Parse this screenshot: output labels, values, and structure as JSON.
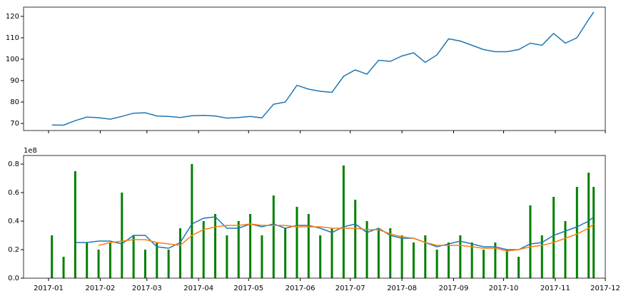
{
  "chart_data": [
    {
      "type": "line",
      "x": [
        "2017-01-03",
        "2017-01-10",
        "2017-01-17",
        "2017-01-24",
        "2017-01-31",
        "2017-02-07",
        "2017-02-14",
        "2017-02-21",
        "2017-02-28",
        "2017-03-07",
        "2017-03-14",
        "2017-03-21",
        "2017-03-28",
        "2017-04-04",
        "2017-04-11",
        "2017-04-18",
        "2017-04-25",
        "2017-05-02",
        "2017-05-09",
        "2017-05-16",
        "2017-05-23",
        "2017-05-30",
        "2017-06-06",
        "2017-06-13",
        "2017-06-20",
        "2017-06-27",
        "2017-07-04",
        "2017-07-11",
        "2017-07-18",
        "2017-07-25",
        "2017-08-01",
        "2017-08-08",
        "2017-08-15",
        "2017-08-22",
        "2017-08-29",
        "2017-09-05",
        "2017-09-12",
        "2017-09-19",
        "2017-09-26",
        "2017-10-03",
        "2017-10-10",
        "2017-10-17",
        "2017-10-24",
        "2017-10-31",
        "2017-11-07",
        "2017-11-14",
        "2017-11-21",
        "2017-11-24"
      ],
      "series": [
        {
          "color": "#1f77b4",
          "values": [
            69.3,
            69.2,
            71.3,
            73,
            72.7,
            72,
            73.3,
            74.8,
            75,
            73.5,
            73.3,
            72.8,
            73.6,
            73.8,
            73.5,
            72.5,
            72.8,
            73.3,
            72.6,
            79,
            80,
            87.8,
            86,
            85,
            84.5,
            92,
            95,
            93,
            99.5,
            99,
            101.5,
            103,
            98.5,
            102,
            109.5,
            108.5,
            106.5,
            104.5,
            103.5,
            103.5,
            104.5,
            107.5,
            106.5,
            112,
            107.5,
            110,
            118.5,
            122
          ]
        }
      ],
      "xlim": [
        "2016-12-17",
        "2017-12-01"
      ],
      "xticks": [
        "2017-01-01",
        "2017-02-01",
        "2017-03-01",
        "2017-04-01",
        "2017-05-01",
        "2017-06-01",
        "2017-07-01",
        "2017-08-01",
        "2017-09-01",
        "2017-10-01",
        "2017-11-01",
        "2017-12-01"
      ],
      "ylim": [
        66.7,
        124.3
      ],
      "yticks": [
        70,
        80,
        90,
        100,
        110,
        120
      ]
    },
    {
      "type": "bar",
      "offset_label": "1e8",
      "x": [
        "2017-01-03",
        "2017-01-10",
        "2017-01-17",
        "2017-01-24",
        "2017-01-31",
        "2017-02-07",
        "2017-02-14",
        "2017-02-21",
        "2017-02-28",
        "2017-03-07",
        "2017-03-14",
        "2017-03-21",
        "2017-03-28",
        "2017-04-04",
        "2017-04-11",
        "2017-04-18",
        "2017-04-25",
        "2017-05-02",
        "2017-05-09",
        "2017-05-16",
        "2017-05-23",
        "2017-05-30",
        "2017-06-06",
        "2017-06-13",
        "2017-06-20",
        "2017-06-27",
        "2017-07-04",
        "2017-07-11",
        "2017-07-18",
        "2017-07-25",
        "2017-08-01",
        "2017-08-08",
        "2017-08-15",
        "2017-08-22",
        "2017-08-29",
        "2017-09-05",
        "2017-09-12",
        "2017-09-19",
        "2017-09-26",
        "2017-10-03",
        "2017-10-10",
        "2017-10-17",
        "2017-10-24",
        "2017-10-31",
        "2017-11-07",
        "2017-11-14",
        "2017-11-21",
        "2017-11-24"
      ],
      "series": [
        {
          "type": "bar",
          "color": "#008000",
          "values": [
            0.3,
            0.15,
            0.75,
            0.25,
            0.2,
            0.25,
            0.6,
            0.3,
            0.2,
            0.25,
            0.2,
            0.35,
            0.8,
            0.4,
            0.45,
            0.3,
            0.4,
            0.45,
            0.3,
            0.58,
            0.35,
            0.5,
            0.45,
            0.3,
            0.35,
            0.79,
            0.55,
            0.4,
            0.35,
            0.35,
            0.3,
            0.25,
            0.3,
            0.2,
            0.25,
            0.3,
            0.25,
            0.2,
            0.25,
            0.2,
            0.15,
            0.51,
            0.3,
            0.57,
            0.4,
            0.64,
            0.74,
            0.64
          ]
        },
        {
          "type": "line",
          "color": "#1f77b4",
          "values": [
            null,
            null,
            0.25,
            0.25,
            0.26,
            0.26,
            0.24,
            0.3,
            0.3,
            0.22,
            0.21,
            0.25,
            0.38,
            0.42,
            0.43,
            0.35,
            0.35,
            0.38,
            0.36,
            0.38,
            0.35,
            0.37,
            0.37,
            0.35,
            0.32,
            0.36,
            0.38,
            0.32,
            0.35,
            0.3,
            0.28,
            0.28,
            0.25,
            0.22,
            0.24,
            0.26,
            0.24,
            0.22,
            0.22,
            0.2,
            0.2,
            0.24,
            0.25,
            0.3,
            0.33,
            0.36,
            0.4,
            0.43
          ]
        },
        {
          "type": "line",
          "color": "#ff7f0e",
          "values": [
            null,
            null,
            null,
            null,
            0.23,
            0.25,
            0.26,
            0.27,
            0.27,
            0.25,
            0.24,
            0.23,
            0.3,
            0.34,
            0.36,
            0.37,
            0.37,
            0.38,
            0.37,
            0.37,
            0.37,
            0.36,
            0.36,
            0.36,
            0.35,
            0.35,
            0.35,
            0.34,
            0.34,
            0.31,
            0.29,
            0.28,
            0.25,
            0.23,
            0.23,
            0.23,
            0.22,
            0.21,
            0.21,
            0.19,
            0.2,
            0.22,
            0.23,
            0.25,
            0.28,
            0.31,
            0.35,
            0.38
          ]
        }
      ],
      "xlim": [
        "2016-12-17",
        "2017-12-01"
      ],
      "xticks": [
        {
          "value": "2017-01-01",
          "label": "2017-01"
        },
        {
          "value": "2017-02-01",
          "label": "2017-02"
        },
        {
          "value": "2017-03-01",
          "label": "2017-03"
        },
        {
          "value": "2017-04-01",
          "label": "2017-04"
        },
        {
          "value": "2017-05-01",
          "label": "2017-05"
        },
        {
          "value": "2017-06-01",
          "label": "2017-06"
        },
        {
          "value": "2017-07-01",
          "label": "2017-07"
        },
        {
          "value": "2017-08-01",
          "label": "2017-08"
        },
        {
          "value": "2017-09-01",
          "label": "2017-09"
        },
        {
          "value": "2017-10-01",
          "label": "2017-10"
        },
        {
          "value": "2017-11-01",
          "label": "2017-11"
        },
        {
          "value": "2017-12-01",
          "label": "2017-12"
        }
      ],
      "ylim": [
        0,
        0.86
      ],
      "yticks": [
        {
          "value": 0,
          "label": "0.0"
        },
        0.2,
        0.4,
        0.6,
        0.8
      ]
    }
  ]
}
